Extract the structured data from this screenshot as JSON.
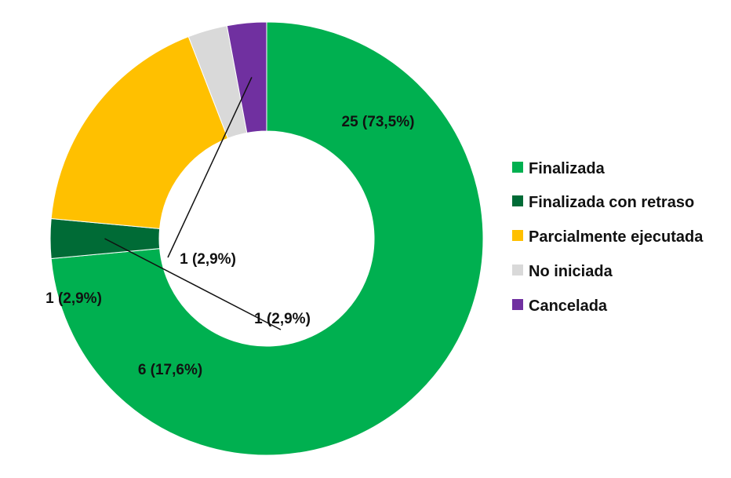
{
  "chart_data": {
    "type": "pie",
    "donut": true,
    "categories": [
      "Finalizada",
      "Finalizada con retraso",
      "Parcialmente ejecutada",
      "No iniciada",
      "Cancelada"
    ],
    "values": [
      25,
      1,
      6,
      1,
      1
    ],
    "percentages": [
      73.5,
      2.9,
      17.6,
      2.9,
      2.9
    ],
    "data_labels": [
      "25 (73,5%)",
      "1 (2,9%)",
      "6 (17,6%)",
      "1 (2,9%)",
      "1 (2,9%)"
    ],
    "colors": [
      "#00b050",
      "#006b36",
      "#ffc000",
      "#d9d9d9",
      "#7030a0"
    ],
    "legend_position": "right"
  }
}
